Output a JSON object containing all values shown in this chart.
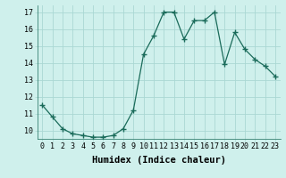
{
  "x": [
    0,
    1,
    2,
    3,
    4,
    5,
    6,
    7,
    8,
    9,
    10,
    11,
    12,
    13,
    14,
    15,
    16,
    17,
    18,
    19,
    20,
    21,
    22,
    23
  ],
  "y": [
    11.5,
    10.8,
    10.1,
    9.8,
    9.7,
    9.6,
    9.6,
    9.7,
    10.1,
    11.2,
    14.5,
    15.6,
    17.0,
    17.0,
    15.4,
    16.5,
    16.5,
    17.0,
    13.9,
    15.8,
    14.8,
    14.2,
    13.8,
    13.2
  ],
  "line_color": "#1a6b5a",
  "marker": "+",
  "marker_size": 4,
  "marker_lw": 1.0,
  "bg_color": "#cff0ec",
  "grid_color": "#aad8d3",
  "xlabel": "Humidex (Indice chaleur)",
  "ylim": [
    9.5,
    17.4
  ],
  "xlim": [
    -0.5,
    23.5
  ],
  "yticks": [
    10,
    11,
    12,
    13,
    14,
    15,
    16,
    17
  ],
  "xticks": [
    0,
    1,
    2,
    3,
    4,
    5,
    6,
    7,
    8,
    9,
    10,
    11,
    12,
    13,
    14,
    15,
    16,
    17,
    18,
    19,
    20,
    21,
    22,
    23
  ],
  "tick_fontsize": 6,
  "xlabel_fontsize": 7.5,
  "line_width": 0.9
}
